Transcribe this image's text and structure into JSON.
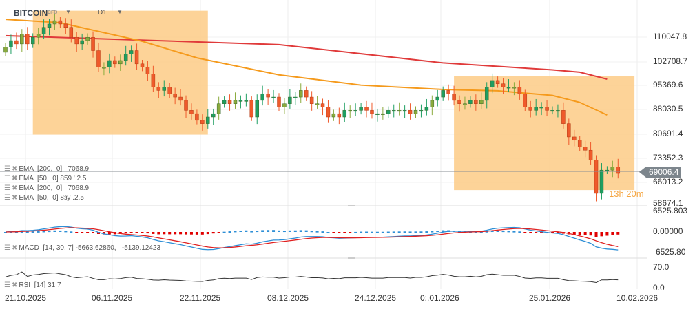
{
  "header": {
    "symbol": "BITCOIN",
    "instrument_type": "CFD",
    "timeframe": "D1",
    "symbol_dropdown_icon": "caret-down-icon",
    "timeframe_dropdown_icon": "caret-down-icon"
  },
  "legend": [
    {
      "label": "EMA  [200,  0]   7068.9"
    },
    {
      "label": "EMA  [50,  0] 859 ' 2.5"
    },
    {
      "label": "EMA  [200,  0]   7068.9"
    },
    {
      "label": "EMA  [50,  0] 8зу .2.5"
    },
    {
      "label": "MACD  [14, 30, 7] -5663.62860,   -5139.12423"
    },
    {
      "label": "RSI  [14] 31.7"
    }
  ],
  "current_price": "69006.4",
  "candle_timer": "13h 20m",
  "colors": {
    "bull": "#1e9e62",
    "bear": "#ef5a2b",
    "bull_alt": "#8aaa3c",
    "ema200": "#e03a3a",
    "ema50": "#f59a1c",
    "highlight": "#fdcb86",
    "macd": "#2e8fd6",
    "signal": "#e02020",
    "hist_pos": "#2e8fd6",
    "hist_neg": "#e00000",
    "rsi": "#333333"
  },
  "chart_data": {
    "type": "candlestick",
    "x_tick_labels": [
      "21.10.2025",
      "06.11.2025",
      "22.11.2025",
      "08.12.2025",
      "24.12.2025",
      "0:.01.2026",
      "25.01.2026",
      "10.02.2026"
    ],
    "y_tick_labels": [
      "110047.8",
      "102708.7",
      "95369.6",
      "88030.5",
      "80691.4",
      "73352.3",
      "66013.2",
      "58674.1"
    ],
    "ylim": [
      58674.1,
      117400
    ],
    "first_date": "17.10.2025",
    "close": [
      107,
      109,
      108,
      111,
      108,
      110,
      111,
      113,
      114,
      115,
      114,
      113,
      110,
      108,
      109,
      110,
      106,
      101,
      101,
      103,
      102,
      103,
      105,
      106,
      102,
      101,
      99,
      95,
      94,
      95,
      93,
      92,
      91,
      88,
      87,
      85,
      84,
      86,
      87,
      90,
      91,
      90,
      91,
      91,
      91,
      86,
      91,
      93,
      92,
      92,
      89,
      90,
      92,
      92,
      94,
      92,
      90,
      90,
      89,
      86,
      87,
      86,
      88,
      88,
      88,
      89,
      88,
      87,
      87,
      87,
      88,
      88,
      88,
      88,
      87,
      88,
      88,
      89,
      91,
      92,
      94,
      93,
      91,
      90,
      90,
      91,
      90,
      91,
      95,
      97,
      96,
      95,
      95,
      95,
      93,
      89,
      88,
      89,
      89,
      88,
      88,
      88,
      84,
      80,
      79,
      77,
      76,
      73,
      63,
      70,
      70,
      71,
      69.0
    ],
    "ema200": [
      [
        0,
        110.5
      ],
      [
        50,
        107.8
      ],
      [
        80,
        102.3
      ],
      [
        100,
        100.2
      ],
      [
        105,
        99.5
      ],
      [
        110,
        97.4
      ]
    ],
    "ema50": [
      [
        0,
        115.4
      ],
      [
        10,
        114.4
      ],
      [
        25,
        108.8
      ],
      [
        35,
        103.8
      ],
      [
        50,
        98.7
      ],
      [
        65,
        95.6
      ],
      [
        80,
        94.3
      ],
      [
        90,
        93.9
      ],
      [
        100,
        92.5
      ],
      [
        105,
        90.4
      ],
      [
        110,
        86.6
      ]
    ],
    "highlight_zones": [
      {
        "from_day": 5,
        "to_day": 37,
        "price_top": 118000,
        "price_bottom": 80700
      },
      {
        "from_day": 82,
        "to_day": 115,
        "price_top": 98400,
        "price_bottom": 64000
      }
    ],
    "macd": {
      "params": [
        14,
        30,
        7
      ],
      "y_tick_labels": [
        "6525.803",
        "0.00000",
        "6525.80"
      ],
      "ylim": [
        -6525.8,
        6525.8
      ]
    },
    "rsi": {
      "period": 14,
      "value": 31.7,
      "y_tick_labels": [
        "70.0",
        "0.0"
      ]
    }
  }
}
